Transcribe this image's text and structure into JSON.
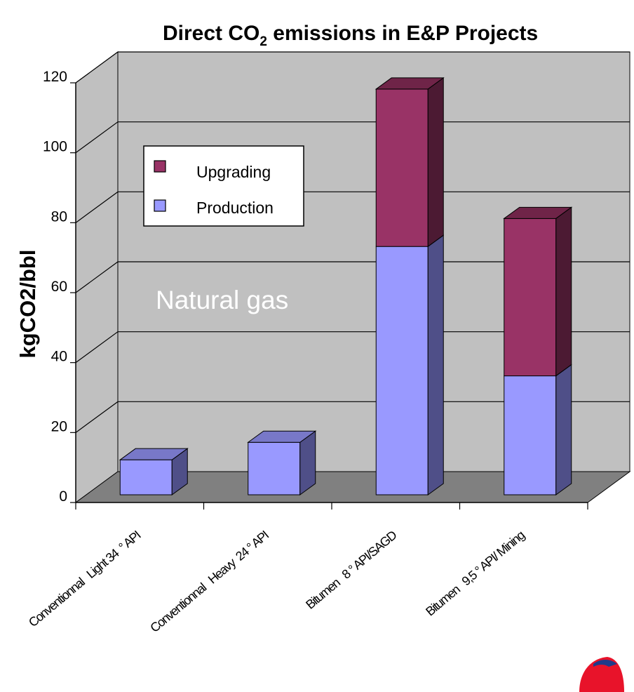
{
  "chart_data": {
    "type": "bar",
    "stacked": true,
    "three_d": true,
    "title_parts": [
      "Direct CO",
      "2",
      " emissions in E&P Projects"
    ],
    "ylabel": "kgCO2/bbl",
    "xlabel": "",
    "ylim": [
      0,
      120
    ],
    "yticks": [
      "0",
      "20",
      "40",
      "60",
      "80",
      "100",
      "120"
    ],
    "categories": [
      "Conventionnal   Light 34  ° API",
      "Conventionnal   Heavy  24 ° API",
      "Bitumen   8 ° API/SAGD",
      "Bitumen   9,5 ° API/ Mining"
    ],
    "series": [
      {
        "name": "Production",
        "values": [
          10,
          15,
          71,
          34
        ]
      },
      {
        "name": "Upgrading",
        "values": [
          0,
          0,
          45,
          45
        ]
      }
    ],
    "legend_order": [
      "Upgrading",
      "Production"
    ],
    "legend_position": "upper-left inside plot",
    "annotation": "Natural gas",
    "grid": true,
    "colors": {
      "Production": "#9999ff",
      "Production_side": "#4f4f88",
      "Production_top": "#7878c8",
      "Upgrading": "#993366",
      "Upgrading_side": "#4c1a33",
      "Upgrading_top": "#6f2448",
      "wall": "#c0c0c0",
      "floor": "#808080",
      "grid": "#000000"
    }
  },
  "logo": {
    "name": "corner-logo-icon",
    "colors": [
      "#e8132a",
      "#1f3b8a"
    ]
  }
}
